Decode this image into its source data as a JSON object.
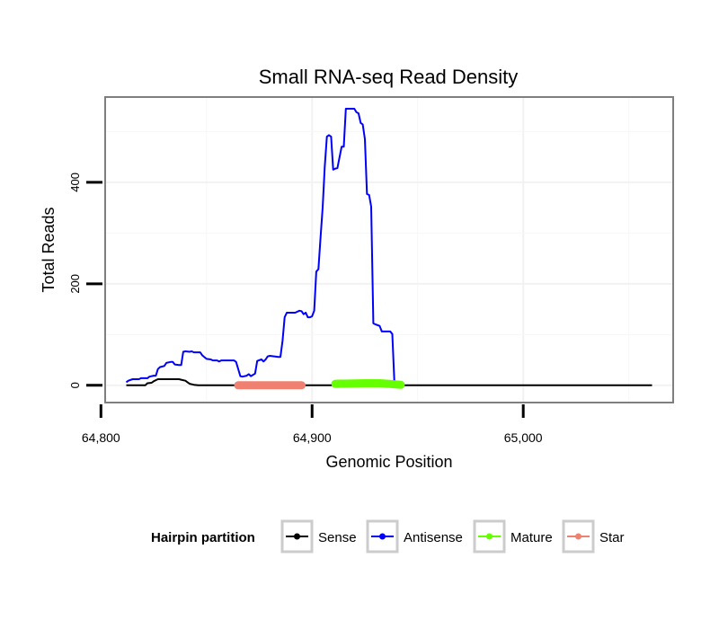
{
  "chart_data": {
    "type": "line",
    "title": "Small RNA-seq Read Density",
    "xlabel": "Genomic Position",
    "ylabel": "Total Reads",
    "xlim": [
      64802,
      65071
    ],
    "ylim": [
      -34,
      568
    ],
    "x_ticks": [
      64800,
      64900,
      65000
    ],
    "x_tick_labels": [
      "64,800",
      "64,900",
      "65,000"
    ],
    "y_ticks": [
      0,
      200,
      400
    ],
    "y_tick_labels": [
      "0",
      "200",
      "400"
    ],
    "grid": true,
    "legend": {
      "title": "Hairpin partition",
      "position": "bottom",
      "entries": [
        {
          "name": "Sense",
          "color": "#000000"
        },
        {
          "name": "Antisense",
          "color": "#0000ff"
        },
        {
          "name": "Mature",
          "color": "#66ff00"
        },
        {
          "name": "Star",
          "color": "#f08070"
        }
      ]
    },
    "series": [
      {
        "name": "Antisense",
        "color": "#0000ff",
        "width": 2,
        "points": [
          [
            64812,
            6
          ],
          [
            64813,
            9
          ],
          [
            64815,
            12
          ],
          [
            64818,
            12
          ],
          [
            64819,
            14
          ],
          [
            64822,
            14
          ],
          [
            64823,
            17
          ],
          [
            64825,
            19
          ],
          [
            64826,
            19
          ],
          [
            64827,
            32
          ],
          [
            64828,
            36
          ],
          [
            64830,
            38
          ],
          [
            64831,
            44
          ],
          [
            64833,
            46
          ],
          [
            64834,
            46
          ],
          [
            64835,
            41
          ],
          [
            64837,
            40
          ],
          [
            64838,
            40
          ],
          [
            64839,
            66
          ],
          [
            64840,
            67
          ],
          [
            64842,
            66
          ],
          [
            64843,
            67
          ],
          [
            64844,
            65
          ],
          [
            64847,
            65
          ],
          [
            64848,
            59
          ],
          [
            64850,
            52
          ],
          [
            64852,
            51
          ],
          [
            64853,
            49
          ],
          [
            64855,
            49
          ],
          [
            64856,
            47
          ],
          [
            64857,
            49
          ],
          [
            64863,
            49
          ],
          [
            64864,
            46
          ],
          [
            64866,
            18
          ],
          [
            64867,
            17
          ],
          [
            64869,
            19
          ],
          [
            64870,
            22
          ],
          [
            64871,
            18
          ],
          [
            64873,
            23
          ],
          [
            64874,
            48
          ],
          [
            64876,
            51
          ],
          [
            64877,
            47
          ],
          [
            64878,
            51
          ],
          [
            64879,
            57
          ],
          [
            64880,
            58
          ],
          [
            64884,
            56
          ],
          [
            64885,
            56
          ],
          [
            64886,
            88
          ],
          [
            64887,
            134
          ],
          [
            64888,
            143
          ],
          [
            64892,
            143
          ],
          [
            64894,
            147
          ],
          [
            64895,
            146
          ],
          [
            64896,
            140
          ],
          [
            64897,
            143
          ],
          [
            64898,
            134
          ],
          [
            64899,
            134
          ],
          [
            64900,
            136
          ],
          [
            64901,
            147
          ],
          [
            64902,
            224
          ],
          [
            64903,
            229
          ],
          [
            64904,
            290
          ],
          [
            64905,
            350
          ],
          [
            64906,
            430
          ],
          [
            64907,
            490
          ],
          [
            64908,
            493
          ],
          [
            64909,
            490
          ],
          [
            64910,
            425
          ],
          [
            64911,
            427
          ],
          [
            64912,
            428
          ],
          [
            64914,
            470
          ],
          [
            64915,
            470
          ],
          [
            64916,
            545
          ],
          [
            64920,
            545
          ],
          [
            64921,
            538
          ],
          [
            64922,
            536
          ],
          [
            64923,
            517
          ],
          [
            64924,
            514
          ],
          [
            64925,
            485
          ],
          [
            64926,
            377
          ],
          [
            64927,
            375
          ],
          [
            64928,
            352
          ],
          [
            64929,
            122
          ],
          [
            64930,
            120
          ],
          [
            64932,
            117
          ],
          [
            64933,
            106
          ],
          [
            64937,
            106
          ],
          [
            64938,
            101
          ],
          [
            64939,
            2
          ]
        ]
      },
      {
        "name": "Sense",
        "color": "#000000",
        "width": 2,
        "points": [
          [
            64812,
            0
          ],
          [
            64821,
            0
          ],
          [
            64822,
            4
          ],
          [
            64824,
            5
          ],
          [
            64825,
            8
          ],
          [
            64826,
            10
          ],
          [
            64827,
            12
          ],
          [
            64837,
            12
          ],
          [
            64838,
            11
          ],
          [
            64840,
            9
          ],
          [
            64841,
            6
          ],
          [
            64842,
            3
          ],
          [
            64844,
            1
          ],
          [
            64846,
            0
          ],
          [
            64912,
            0
          ],
          [
            64913,
            2
          ],
          [
            64914,
            5
          ],
          [
            64928,
            5
          ],
          [
            64929,
            4
          ],
          [
            64930,
            2
          ],
          [
            64931,
            0
          ],
          [
            65061,
            0
          ]
        ]
      },
      {
        "name": "Star",
        "color": "#f08070",
        "width": 9,
        "points": [
          [
            64865,
            0
          ],
          [
            64895,
            0
          ]
        ]
      },
      {
        "name": "Mature",
        "color": "#66ff00",
        "width": 9,
        "points": [
          [
            64911,
            3
          ],
          [
            64925,
            4
          ],
          [
            64932,
            4
          ],
          [
            64936,
            3
          ],
          [
            64939,
            2
          ],
          [
            64942,
            1
          ]
        ]
      }
    ]
  }
}
